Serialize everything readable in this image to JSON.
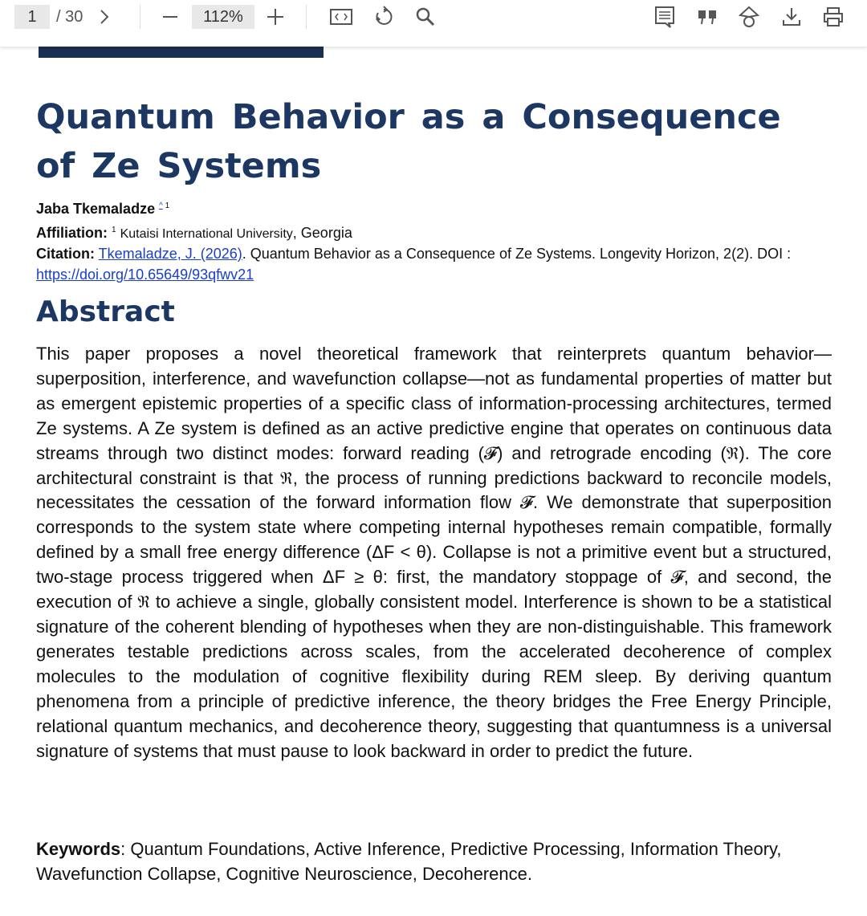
{
  "toolbar": {
    "page_current": "1",
    "page_total": "/ 30",
    "zoom": "112%",
    "icons": [
      "chevron-right-icon",
      "zoom-out-icon",
      "zoom-in-icon",
      "fit-page-icon",
      "rotate-icon",
      "search-icon",
      "comments-icon",
      "quote-icon",
      "print-settings-icon",
      "download-icon",
      "print-icon"
    ]
  },
  "paper": {
    "title": "Quantum Behavior as a Consequence of Ze Systems",
    "author": "Jaba Tkemaladze",
    "author_marks": "^",
    "author_sup": "1",
    "affiliation_label": "Affiliation:",
    "affiliation_sup": "1",
    "affiliation_institution": "Kutaisi International University",
    "affiliation_country": ", Georgia",
    "citation_label": "Citation:",
    "citation_link": "Tkemaladze, J. (2026)",
    "citation_text": ". Quantum Behavior as a Consequence of Ze Systems. Longevity Horizon, 2(2). DOI : ",
    "doi": "https://doi.org/10.65649/93qfwv21",
    "abstract_heading": "Abstract",
    "abstract": "This paper proposes a novel theoretical framework that reinterprets quantum behavior—superposition, interference, and wavefunction collapse—not as fundamental properties of matter but as emergent epistemic properties of a specific class of information-processing architectures, termed Ze systems. A Ze system is defined as an active predictive engine that operates on continuous data streams through two distinct modes: forward reading (𝓕) and retrograde encoding (ℜ). The core architectural constraint is that ℜ, the process of running predictions backward to reconcile models, necessitates the cessation of the forward information flow 𝓕. We demonstrate that superposition corresponds to the system state where competing internal hypotheses remain compatible, formally defined by a small free energy difference (ΔF < θ). Collapse is not a primitive event but a structured, two-stage process triggered when ΔF ≥ θ: first, the mandatory stoppage of 𝓕, and second, the execution of ℜ to achieve a single, globally consistent model. Interference is shown to be a statistical signature of the coherent blending of hypotheses when they are non-distinguishable. This framework generates testable predictions across scales, from the accelerated decoherence of complex molecules to the modulation of cognitive flexibility during REM sleep. By deriving quantum phenomena from a principle of predictive inference, the theory bridges the Free Energy Principle, relational quantum mechanics, and decoherence theory, suggesting that quantumness is a universal signature of systems that must pause to look backward in order to predict the future.",
    "keywords_label": "Keywords",
    "keywords": ": Quantum Foundations, Active Inference, Predictive Processing, Information Theory, Wavefunction Collapse, Cognitive Neuroscience, Decoherence."
  },
  "colors": {
    "heading": "#1c3762",
    "link": "#1a3fc4",
    "bar": "#1a2f52"
  }
}
